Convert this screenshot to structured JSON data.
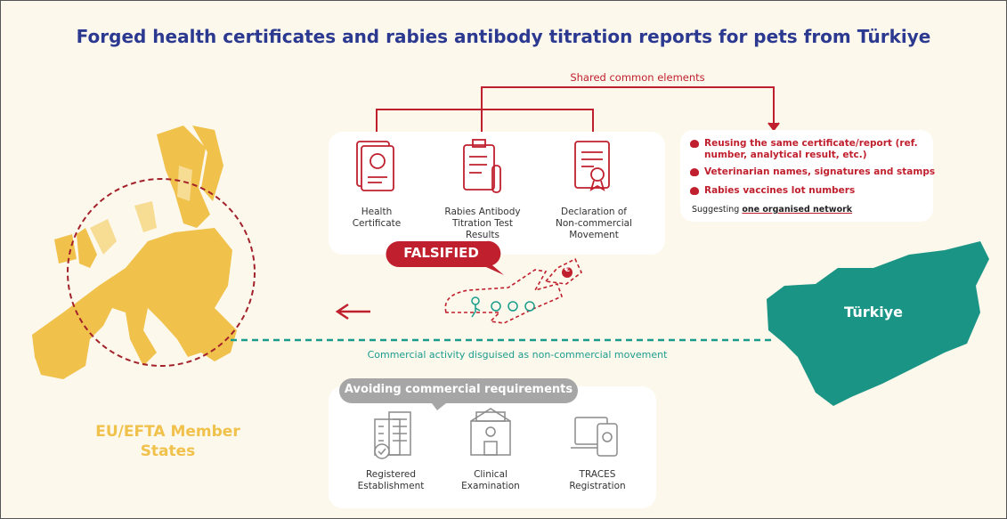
{
  "title": "Forged health certificates and rabies antibody titration reports for pets from Türkiye",
  "shared_label": "Shared common elements",
  "documents": [
    {
      "label": "Health Certificate"
    },
    {
      "label": "Rabies Antibody Titration Test Results"
    },
    {
      "label": "Declaration of Non-commercial Movement"
    }
  ],
  "falsified": "FALSIFIED",
  "price_tag": "€",
  "common_elements": {
    "items": [
      "Reusing the same certificate/report (ref. number, analytical result, etc.)",
      "Veterinarian names, signatures and stamps",
      "Rabies vaccines lot numbers"
    ],
    "note": {
      "prefix": "Suggesting",
      "emphasis": "one organised network"
    }
  },
  "eu_label": "EU/EFTA Member States",
  "turkiye_label": "Türkiye",
  "route_label": "Commercial activity disguised as non-commercial movement",
  "avoiding": {
    "title": "Avoiding commercial requirements",
    "items": [
      {
        "label": "Registered Establishment"
      },
      {
        "label": "Clinical Examination"
      },
      {
        "label": "TRACES Registration"
      }
    ]
  }
}
